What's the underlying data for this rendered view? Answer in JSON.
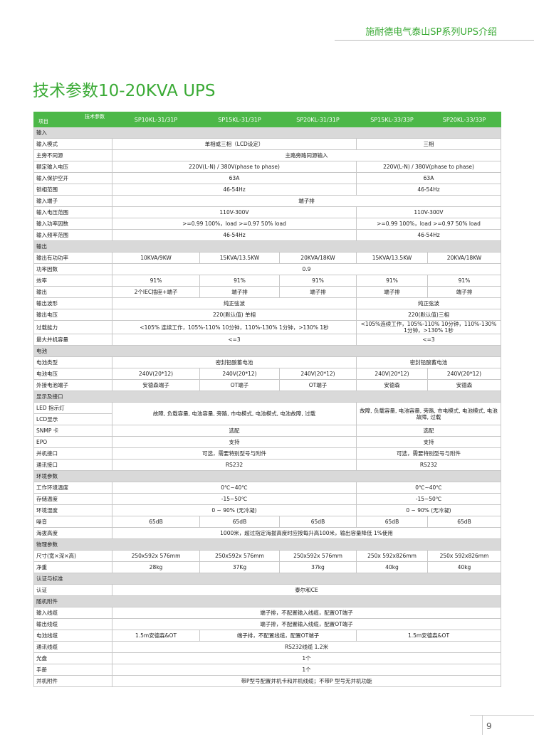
{
  "header_text": "施耐德电气泰山SP系列UPS介绍",
  "title": "技术参数10-20KVA UPS",
  "table": {
    "corner_top": "技术参数",
    "corner_bottom": "项目",
    "columns": [
      "SP10KL-31/31P",
      "SP15KL-31/31P",
      "SP20KL-31/31P",
      "SP15KL-33/33P",
      "SP20KL-33/33P"
    ],
    "rows": [
      {
        "section": "输入"
      },
      {
        "label": "输入模式",
        "cells": [
          {
            "text": "单相或三相（LCD设定）",
            "colspan": 3
          },
          {
            "text": "三相",
            "colspan": 2
          }
        ]
      },
      {
        "label": "主旁不同源",
        "cells": [
          {
            "text": "主路旁路同源输入",
            "colspan": 5
          }
        ]
      },
      {
        "label": "额定输入电压",
        "cells": [
          {
            "text": "220V(L-N) / 380V(phase to phase)",
            "colspan": 3
          },
          {
            "text": "220V(L-N) / 380V(phase to phase)",
            "colspan": 2
          }
        ]
      },
      {
        "label": "输入保护空开",
        "cells": [
          {
            "text": "63A",
            "colspan": 3
          },
          {
            "text": "63A",
            "colspan": 2
          }
        ]
      },
      {
        "label": "锁相范围",
        "cells": [
          {
            "text": "46-54Hz",
            "colspan": 3
          },
          {
            "text": "46-54Hz",
            "colspan": 2
          }
        ]
      },
      {
        "label": "输入端子",
        "cells": [
          {
            "text": "端子排",
            "colspan": 5
          }
        ]
      },
      {
        "label": "输入电压范围",
        "cells": [
          {
            "text": "110V-300V",
            "colspan": 3
          },
          {
            "text": "110V-300V",
            "colspan": 2
          }
        ]
      },
      {
        "label": "输入功率因数",
        "cells": [
          {
            "text": ">=0.99 100%，load >=0.97 50% load",
            "colspan": 3
          },
          {
            "text": ">=0.99 100%，load >=0.97 50% load",
            "colspan": 2
          }
        ]
      },
      {
        "label": "输入频率范围",
        "cells": [
          {
            "text": "46-54Hz",
            "colspan": 3
          },
          {
            "text": "46-54Hz",
            "colspan": 2
          }
        ]
      },
      {
        "section": "输出"
      },
      {
        "label": "输出有功功率",
        "cells": [
          {
            "text": "10KVA/9KW"
          },
          {
            "text": "15KVA/13.5KW"
          },
          {
            "text": "20KVA/18KW"
          },
          {
            "text": "15KVA/13.5KW"
          },
          {
            "text": "20KVA/18KW"
          }
        ]
      },
      {
        "label": "功率因数",
        "cells": [
          {
            "text": "0.9",
            "colspan": 5
          }
        ]
      },
      {
        "label": "效率",
        "cells": [
          {
            "text": "91%"
          },
          {
            "text": "91%"
          },
          {
            "text": "91%"
          },
          {
            "text": "91%"
          },
          {
            "text": "91%"
          }
        ]
      },
      {
        "label": "输出",
        "cells": [
          {
            "text": "2个IEC插座+端子"
          },
          {
            "text": "端子排"
          },
          {
            "text": "端子排"
          },
          {
            "text": "端子排"
          },
          {
            "text": "端子排"
          }
        ]
      },
      {
        "label": "输出波形",
        "cells": [
          {
            "text": "纯正弦波",
            "colspan": 3
          },
          {
            "text": "纯正弦波",
            "colspan": 2
          }
        ]
      },
      {
        "label": "输出电压",
        "cells": [
          {
            "text": "220(默认值) 单相",
            "colspan": 3
          },
          {
            "text": "220(默认值)三相",
            "colspan": 2
          }
        ]
      },
      {
        "label": "过载能力",
        "cells": [
          {
            "text": "<105% 连续工作，105%-110% 10分钟，110%-130% 1分钟，>130% 1秒",
            "colspan": 3
          },
          {
            "text": "<105%连续工作，105%-110% 10分钟，110%-130% 1分钟，>130% 1秒",
            "colspan": 2
          }
        ]
      },
      {
        "label": "最大并机容量",
        "cells": [
          {
            "text": "<=3",
            "colspan": 3
          },
          {
            "text": "<=3",
            "colspan": 2
          }
        ]
      },
      {
        "section": "电池"
      },
      {
        "label": "电池类型",
        "cells": [
          {
            "text": "密封铅酸蓄电池",
            "colspan": 3
          },
          {
            "text": "密封铅酸蓄电池",
            "colspan": 2
          }
        ]
      },
      {
        "label": "电池电压",
        "cells": [
          {
            "text": "240V(20*12)"
          },
          {
            "text": "240V(20*12)"
          },
          {
            "text": "240V(20*12)"
          },
          {
            "text": "240V(20*12)"
          },
          {
            "text": "240V(20*12)"
          }
        ]
      },
      {
        "label": "外接电池端子",
        "cells": [
          {
            "text": "安德森端子"
          },
          {
            "text": "OT端子"
          },
          {
            "text": "OT端子"
          },
          {
            "text": "安德森"
          },
          {
            "text": "安德森"
          }
        ]
      },
      {
        "section": "显示及接口"
      },
      {
        "label": "LED 指示灯",
        "cells": [
          {
            "text": "故障, 负载容量, 电池容量, 旁路, 市电模式, 电池模式, 电池故障, 过载",
            "colspan": 3,
            "rowspan": 2
          },
          {
            "text": "故障, 负载容量, 电池容量, 旁路, 市电模式, 电池模式, 电池故障, 过载",
            "colspan": 2,
            "rowspan": 2
          }
        ]
      },
      {
        "label": "LCD显示",
        "cells": []
      },
      {
        "label": "SNMP 卡",
        "cells": [
          {
            "text": "选配",
            "colspan": 3
          },
          {
            "text": "选配",
            "colspan": 2
          }
        ]
      },
      {
        "label": "EPO",
        "cells": [
          {
            "text": "支持",
            "colspan": 3
          },
          {
            "text": "支持",
            "colspan": 2
          }
        ]
      },
      {
        "label": "并机接口",
        "cells": [
          {
            "text": "可选，需要特别型号与附件",
            "colspan": 3
          },
          {
            "text": "可选，需要特别型号与附件",
            "colspan": 2
          }
        ]
      },
      {
        "label": "通讯接口",
        "cells": [
          {
            "text": "RS232",
            "colspan": 3
          },
          {
            "text": "RS232",
            "colspan": 2
          }
        ]
      },
      {
        "section": "环境参数"
      },
      {
        "label": "工作环境温度",
        "cells": [
          {
            "text": "0℃~40℃",
            "colspan": 3
          },
          {
            "text": "0℃~40℃",
            "colspan": 2
          }
        ]
      },
      {
        "label": "存储温度",
        "cells": [
          {
            "text": "-15~50℃",
            "colspan": 3
          },
          {
            "text": "-15~50℃",
            "colspan": 2
          }
        ]
      },
      {
        "label": "环境湿度",
        "cells": [
          {
            "text": "0 ~ 90% (无冷凝)",
            "colspan": 3
          },
          {
            "text": "0 ~ 90% (无冷凝)",
            "colspan": 2
          }
        ]
      },
      {
        "label": "噪音",
        "cells": [
          {
            "text": "65dB"
          },
          {
            "text": "65dB"
          },
          {
            "text": "65dB"
          },
          {
            "text": "65dB"
          },
          {
            "text": "65dB"
          }
        ]
      },
      {
        "label": "海拔高度",
        "cells": [
          {
            "text": "1000米，超过指定海拔高度时应按每升高100米，输出容量降低 1%使用",
            "colspan": 5
          }
        ]
      },
      {
        "section": "物理参数"
      },
      {
        "label": "尺寸(宽×深×高)",
        "cells": [
          {
            "text": "250x592x 576mm"
          },
          {
            "text": "250x592x 576mm"
          },
          {
            "text": "250x592x 576mm"
          },
          {
            "text": "250x 592x826mm"
          },
          {
            "text": "250x 592x826mm"
          }
        ]
      },
      {
        "label": "净重",
        "cells": [
          {
            "text": "28kg"
          },
          {
            "text": "37Kg"
          },
          {
            "text": "37kg"
          },
          {
            "text": "40kg"
          },
          {
            "text": "40kg"
          }
        ]
      },
      {
        "section": "认证与标准"
      },
      {
        "label": "认证",
        "cells": [
          {
            "text": "泰尔和CE",
            "colspan": 5
          }
        ]
      },
      {
        "section": "随机附件"
      },
      {
        "label": "输入线缆",
        "cells": [
          {
            "text": "端子排，不配置输入线缆，配置OT端子",
            "colspan": 5
          }
        ]
      },
      {
        "label": "输出线缆",
        "cells": [
          {
            "text": "端子排，不配置输入线缆，配置OT端子",
            "colspan": 5
          }
        ]
      },
      {
        "label": "电池线缆",
        "cells": [
          {
            "text": "1.5m安德森&OT"
          },
          {
            "text": "端子排，不配置线缆，配置OT端子",
            "colspan": 2
          },
          {
            "text": "1.5m安德森&OT",
            "colspan": 2
          }
        ]
      },
      {
        "label": "通讯线缆",
        "cells": [
          {
            "text": "RS232线缆 1.2米",
            "colspan": 5
          }
        ]
      },
      {
        "label": "光盘",
        "cells": [
          {
            "text": "1个",
            "colspan": 5
          }
        ]
      },
      {
        "label": "手册",
        "cells": [
          {
            "text": "1个",
            "colspan": 5
          }
        ]
      },
      {
        "label": "并机附件",
        "cells": [
          {
            "text": "带P型号配置并机卡和并机线缆；不带P 型号无并机功能",
            "colspan": 5
          }
        ]
      }
    ]
  },
  "page_number": "9"
}
